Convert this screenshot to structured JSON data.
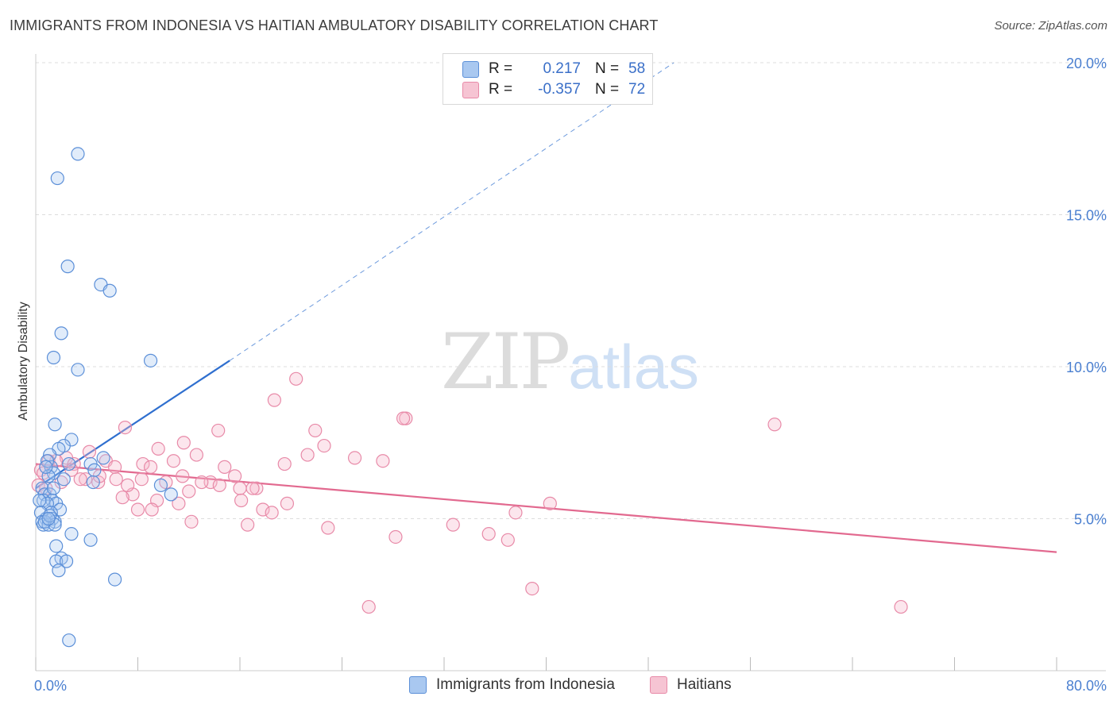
{
  "title": "IMMIGRANTS FROM INDONESIA VS HAITIAN AMBULATORY DISABILITY CORRELATION CHART",
  "source": "Source: ZipAtlas.com",
  "watermark": {
    "zip": "ZIP",
    "atlas": "atlas"
  },
  "colors": {
    "blue_fill": "#a9c8f0",
    "blue_stroke": "#5b8fd8",
    "blue_line": "#2f6fcf",
    "pink_fill": "#f6b7ca",
    "pink_stroke": "#e88aa8",
    "pink_line": "#e2698f",
    "grid": "#dddddd",
    "tick_text": "#4a7fd0"
  },
  "legend": {
    "rows": [
      {
        "r_label": "R =",
        "r_value": "0.217",
        "n_label": "N =",
        "n_value": "58"
      },
      {
        "r_label": "R =",
        "r_value": "-0.357",
        "n_label": "N =",
        "n_value": "72"
      }
    ]
  },
  "bottom_legend": [
    "Immigrants from Indonesia",
    "Haitians"
  ],
  "chart_data": {
    "type": "scatter",
    "xlabel": "",
    "ylabel": "Ambulatory Disability",
    "xlim": [
      0,
      80
    ],
    "ylim": [
      0,
      20
    ],
    "x_tick_labels": [
      "0.0%",
      "80.0%"
    ],
    "y_ticks": [
      5,
      10,
      15,
      20
    ],
    "y_tick_labels": [
      "5.0%",
      "10.0%",
      "15.0%",
      "20.0%"
    ],
    "grid": "horizontal dashed",
    "legend_position": "top-center",
    "series": [
      {
        "name": "Immigrants from Indonesia",
        "trend": {
          "x0": 0,
          "y0": 6.0,
          "x1": 15.2,
          "y1": 10.2,
          "extended_to": [
            50,
            20.0
          ]
        },
        "points": [
          [
            3.3,
            17.0
          ],
          [
            1.7,
            16.2
          ],
          [
            2.5,
            13.3
          ],
          [
            5.1,
            12.7
          ],
          [
            5.8,
            12.5
          ],
          [
            2.0,
            11.1
          ],
          [
            1.4,
            10.3
          ],
          [
            3.3,
            9.9
          ],
          [
            9.0,
            10.2
          ],
          [
            1.5,
            8.1
          ],
          [
            2.8,
            7.6
          ],
          [
            2.2,
            7.4
          ],
          [
            1.8,
            7.3
          ],
          [
            1.1,
            7.1
          ],
          [
            5.3,
            7.0
          ],
          [
            4.3,
            6.8
          ],
          [
            2.6,
            6.8
          ],
          [
            1.2,
            6.7
          ],
          [
            1.4,
            6.5
          ],
          [
            4.6,
            6.6
          ],
          [
            1.0,
            6.4
          ],
          [
            2.2,
            6.3
          ],
          [
            4.5,
            6.2
          ],
          [
            9.8,
            6.1
          ],
          [
            0.5,
            6.0
          ],
          [
            0.7,
            5.8
          ],
          [
            1.1,
            5.8
          ],
          [
            1.3,
            5.6
          ],
          [
            1.6,
            5.5
          ],
          [
            10.6,
            5.8
          ],
          [
            0.6,
            5.6
          ],
          [
            0.9,
            5.5
          ],
          [
            1.9,
            5.3
          ],
          [
            1.2,
            5.2
          ],
          [
            0.8,
            5.0
          ],
          [
            1.3,
            5.0
          ],
          [
            1.5,
            4.9
          ],
          [
            0.4,
            5.2
          ],
          [
            0.5,
            4.9
          ],
          [
            0.6,
            4.8
          ],
          [
            1.0,
            4.8
          ],
          [
            1.5,
            4.8
          ],
          [
            0.7,
            4.9
          ],
          [
            1.1,
            5.1
          ],
          [
            2.8,
            4.5
          ],
          [
            4.3,
            4.3
          ],
          [
            1.6,
            4.1
          ],
          [
            2.0,
            3.7
          ],
          [
            1.6,
            3.6
          ],
          [
            2.4,
            3.6
          ],
          [
            1.8,
            3.3
          ],
          [
            6.2,
            3.0
          ],
          [
            2.6,
            1.0
          ],
          [
            0.9,
            6.9
          ],
          [
            1.4,
            6.0
          ],
          [
            0.3,
            5.6
          ],
          [
            0.8,
            6.7
          ],
          [
            1.0,
            5.0
          ]
        ]
      },
      {
        "name": "Haitians",
        "trend": {
          "x0": 0,
          "y0": 6.8,
          "x1": 80,
          "y1": 3.9
        },
        "points": [
          [
            20.4,
            9.6
          ],
          [
            18.7,
            8.9
          ],
          [
            57.9,
            8.1
          ],
          [
            29.0,
            8.3
          ],
          [
            28.8,
            8.3
          ],
          [
            7.0,
            8.0
          ],
          [
            14.3,
            7.9
          ],
          [
            21.9,
            7.9
          ],
          [
            11.6,
            7.5
          ],
          [
            22.6,
            7.4
          ],
          [
            9.6,
            7.3
          ],
          [
            4.2,
            7.2
          ],
          [
            12.6,
            7.1
          ],
          [
            21.3,
            7.1
          ],
          [
            2.4,
            7.0
          ],
          [
            5.5,
            6.9
          ],
          [
            10.8,
            6.9
          ],
          [
            19.5,
            6.8
          ],
          [
            27.2,
            6.9
          ],
          [
            8.4,
            6.8
          ],
          [
            14.8,
            6.7
          ],
          [
            6.2,
            6.7
          ],
          [
            9.0,
            6.7
          ],
          [
            3.0,
            6.8
          ],
          [
            1.6,
            6.9
          ],
          [
            0.4,
            6.6
          ],
          [
            15.6,
            6.4
          ],
          [
            11.5,
            6.4
          ],
          [
            6.3,
            6.3
          ],
          [
            8.3,
            6.3
          ],
          [
            3.9,
            6.3
          ],
          [
            4.9,
            6.2
          ],
          [
            10.2,
            6.2
          ],
          [
            13.7,
            6.2
          ],
          [
            14.4,
            6.1
          ],
          [
            17.3,
            6.0
          ],
          [
            16.0,
            6.0
          ],
          [
            12.0,
            5.9
          ],
          [
            7.6,
            5.8
          ],
          [
            6.8,
            5.7
          ],
          [
            9.5,
            5.6
          ],
          [
            16.1,
            5.6
          ],
          [
            11.2,
            5.5
          ],
          [
            19.7,
            5.5
          ],
          [
            40.3,
            5.5
          ],
          [
            17.8,
            5.3
          ],
          [
            8.0,
            5.3
          ],
          [
            9.1,
            5.3
          ],
          [
            18.5,
            5.2
          ],
          [
            37.6,
            5.2
          ],
          [
            12.2,
            4.9
          ],
          [
            16.6,
            4.8
          ],
          [
            32.7,
            4.8
          ],
          [
            22.9,
            4.7
          ],
          [
            35.5,
            4.5
          ],
          [
            28.2,
            4.4
          ],
          [
            37.0,
            4.3
          ],
          [
            26.1,
            2.1
          ],
          [
            38.9,
            2.7
          ],
          [
            67.8,
            2.1
          ],
          [
            0.2,
            6.1
          ],
          [
            0.6,
            6.5
          ],
          [
            1.0,
            6.9
          ],
          [
            2.0,
            6.2
          ],
          [
            2.8,
            6.6
          ],
          [
            3.5,
            6.3
          ],
          [
            5.0,
            6.4
          ],
          [
            7.2,
            6.1
          ],
          [
            13.0,
            6.2
          ],
          [
            17.0,
            6.0
          ],
          [
            25.0,
            7.0
          ],
          [
            0.8,
            6.0
          ]
        ]
      }
    ]
  }
}
